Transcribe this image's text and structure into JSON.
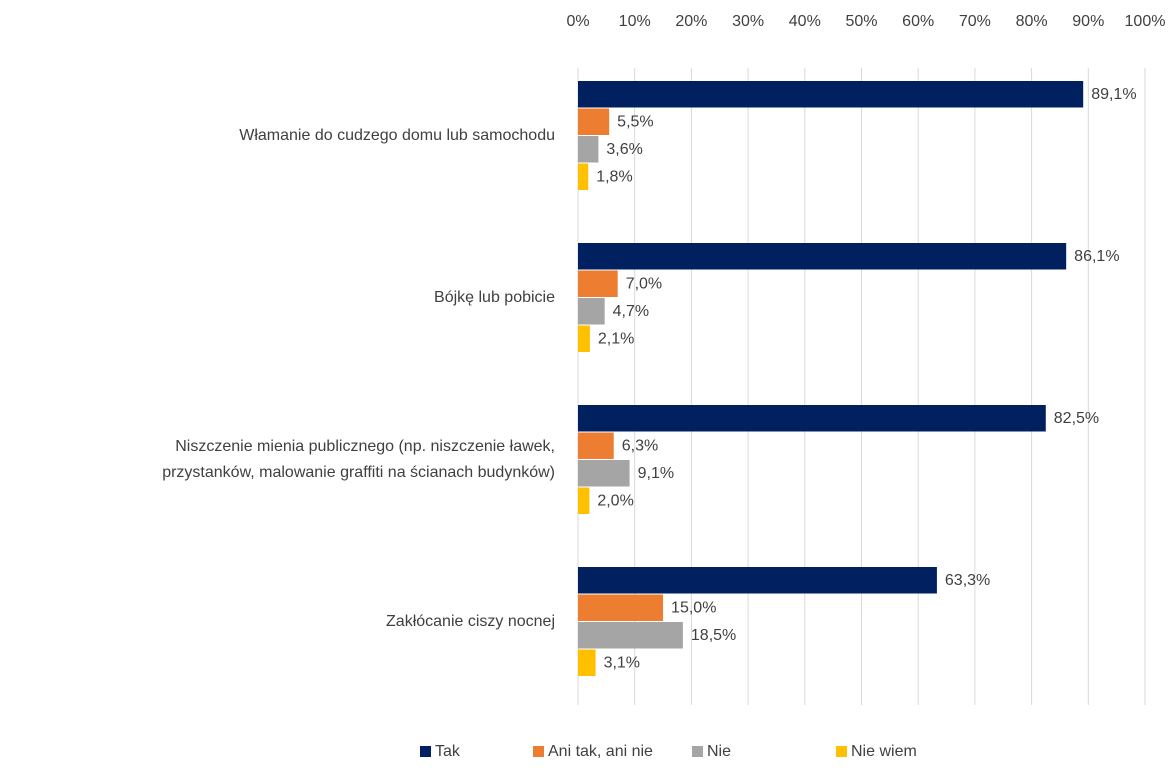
{
  "chart_data": {
    "type": "bar",
    "orientation": "horizontal",
    "categories": [
      [
        "Włamanie do cudzego domu lub samochodu"
      ],
      [
        "Bójkę lub pobicie"
      ],
      [
        "Niszczenie mienia publicznego (np. niszczenie ławek,",
        "przystanków, malowanie graffiti na ścianach budynków)"
      ],
      [
        "Zakłócanie ciszy nocnej"
      ]
    ],
    "series": [
      {
        "name": "Tak",
        "color": "#002060",
        "values": [
          89.1,
          86.1,
          82.5,
          63.3
        ],
        "value_labels": [
          "89,1%",
          "86,1%",
          "82,5%",
          "63,3%"
        ]
      },
      {
        "name": "Ani tak, ani nie",
        "color": "#ed7d31",
        "values": [
          5.5,
          7.0,
          6.3,
          15.0
        ],
        "value_labels": [
          "5,5%",
          "7,0%",
          "6,3%",
          "15,0%"
        ]
      },
      {
        "name": "Nie",
        "color": "#a5a5a5",
        "values": [
          3.6,
          4.7,
          9.1,
          18.5
        ],
        "value_labels": [
          "3,6%",
          "4,7%",
          "9,1%",
          "18,5%"
        ]
      },
      {
        "name": "Nie wiem",
        "color": "#ffc000",
        "values": [
          1.8,
          2.1,
          2.0,
          3.1
        ],
        "value_labels": [
          "1,8%",
          "2,1%",
          "2,0%",
          "3,1%"
        ]
      }
    ],
    "xlim": [
      0,
      100
    ],
    "xticks": [
      {
        "value": 0,
        "label": "0%"
      },
      {
        "value": 10,
        "label": "10%"
      },
      {
        "value": 20,
        "label": "20%"
      },
      {
        "value": 30,
        "label": "30%"
      },
      {
        "value": 40,
        "label": "40%"
      },
      {
        "value": 50,
        "label": "50%"
      },
      {
        "value": 60,
        "label": "60%"
      },
      {
        "value": 70,
        "label": "70%"
      },
      {
        "value": 80,
        "label": "80%"
      },
      {
        "value": 90,
        "label": "90%"
      },
      {
        "value": 100,
        "label": "100%"
      }
    ],
    "grid": true,
    "legend": "bottom"
  }
}
